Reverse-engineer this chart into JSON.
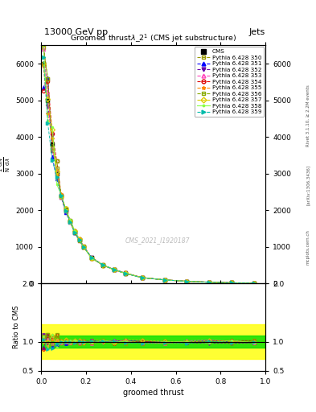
{
  "title_top": "13000 GeV pp",
  "title_right": "Jets",
  "plot_title": "Groomed thrust $\\lambda\\_2^1$ (CMS jet substructure)",
  "xlabel": "groomed thrust",
  "ylabel_ratio": "Ratio to CMS",
  "watermark": "CMS_2021_I1920187",
  "right_label1": "Rivet 3.1.10, ≥ 2.2M events",
  "right_label2": "[arXiv:1306.3436]",
  "right_label3": "mcplots.cern.ch",
  "series": [
    {
      "label": "CMS",
      "color": "#000000",
      "marker": "s",
      "linestyle": "none",
      "filled": true
    },
    {
      "label": "Pythia 6.428 350",
      "color": "#999900",
      "marker": "s",
      "linestyle": "--",
      "filled": false
    },
    {
      "label": "Pythia 6.428 351",
      "color": "#0000ff",
      "marker": "^",
      "linestyle": "--",
      "filled": true
    },
    {
      "label": "Pythia 6.428 352",
      "color": "#6600aa",
      "marker": "v",
      "linestyle": "--",
      "filled": true
    },
    {
      "label": "Pythia 6.428 353",
      "color": "#ff44bb",
      "marker": "^",
      "linestyle": "--",
      "filled": false
    },
    {
      "label": "Pythia 6.428 354",
      "color": "#dd0000",
      "marker": "o",
      "linestyle": "--",
      "filled": false
    },
    {
      "label": "Pythia 6.428 355",
      "color": "#ff8800",
      "marker": "*",
      "linestyle": "--",
      "filled": true
    },
    {
      "label": "Pythia 6.428 356",
      "color": "#88aa00",
      "marker": "s",
      "linestyle": "--",
      "filled": false
    },
    {
      "label": "Pythia 6.428 357",
      "color": "#ddcc00",
      "marker": "D",
      "linestyle": "--",
      "filled": false
    },
    {
      "label": "Pythia 6.428 358",
      "color": "#88ff44",
      "marker": ".",
      "linestyle": "-",
      "filled": true
    },
    {
      "label": "Pythia 6.428 359",
      "color": "#00bbaa",
      "marker": ">",
      "linestyle": "--",
      "filled": true
    }
  ],
  "x_edges": [
    0.0,
    0.02,
    0.04,
    0.06,
    0.08,
    0.1,
    0.12,
    0.14,
    0.16,
    0.18,
    0.2,
    0.25,
    0.3,
    0.35,
    0.4,
    0.5,
    0.6,
    0.7,
    0.8,
    0.9,
    1.0
  ],
  "cms_values": [
    6000,
    5000,
    3800,
    3000,
    2400,
    2000,
    1700,
    1400,
    1200,
    1000,
    700,
    500,
    380,
    280,
    160,
    100,
    60,
    35,
    18,
    8
  ],
  "ylim_main": [
    0,
    6500
  ],
  "yticks_main": [
    0,
    1000,
    2000,
    3000,
    4000,
    5000,
    6000
  ],
  "ylim_ratio": [
    0.5,
    2.0
  ],
  "yticks_ratio": [
    0.5,
    1.0,
    2.0
  ],
  "ratio_green_band": 0.1,
  "ratio_yellow_band": 0.3,
  "green_color": "#00dd00",
  "yellow_color": "#ffff00"
}
